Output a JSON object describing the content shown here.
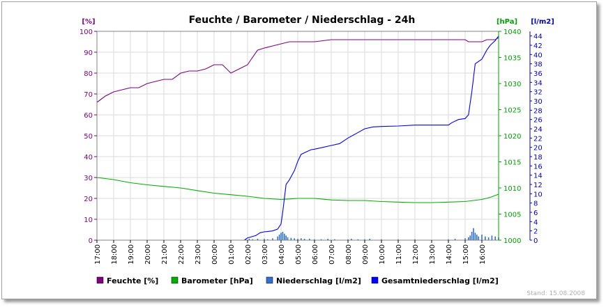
{
  "chart_data": {
    "type": "line",
    "title": "Feuchte / Barometer / Niederschlag - 24h",
    "footer": "Stand: 15.08.2008",
    "x_ticks": [
      "17:00",
      "18:00",
      "19:00",
      "20:00",
      "21:00",
      "22:00",
      "23:00",
      "00:00",
      "01:00",
      "02:00",
      "03:00",
      "04:00",
      "05:00",
      "06:00",
      "07:00",
      "08:00",
      "09:00",
      "10:00",
      "11:00",
      "12:00",
      "13:00",
      "14:00",
      "15:00",
      "16:00"
    ],
    "x_range_hours": [
      0,
      24
    ],
    "axes": {
      "left": {
        "unit": "[%]",
        "range": [
          0,
          100
        ],
        "ticks": [
          0,
          10,
          20,
          30,
          40,
          50,
          60,
          70,
          80,
          90,
          100
        ],
        "color": "#800080"
      },
      "right1": {
        "unit": "[hPa]",
        "range": [
          1000,
          1040
        ],
        "ticks": [
          1000,
          1005,
          1010,
          1015,
          1020,
          1025,
          1030,
          1035,
          1040
        ],
        "color": "#00a000"
      },
      "right2": {
        "unit": "[l/m2]",
        "range": [
          0,
          45
        ],
        "ticks": [
          0,
          2,
          4,
          6,
          8,
          10,
          12,
          14,
          16,
          18,
          20,
          22,
          24,
          26,
          28,
          30,
          32,
          34,
          36,
          38,
          40,
          42,
          44
        ],
        "color": "#0000c0"
      }
    },
    "grid": true,
    "legend_position": "bottom",
    "series": [
      {
        "name": "Feuchte [%]",
        "axis": "left",
        "color": "#800080",
        "points": [
          [
            0,
            66
          ],
          [
            0.5,
            69
          ],
          [
            1,
            71
          ],
          [
            1.5,
            72
          ],
          [
            2,
            73
          ],
          [
            2.5,
            73
          ],
          [
            3,
            75
          ],
          [
            3.5,
            76
          ],
          [
            4,
            77
          ],
          [
            4.5,
            77
          ],
          [
            5,
            80
          ],
          [
            5.5,
            81
          ],
          [
            6,
            81
          ],
          [
            6.5,
            82
          ],
          [
            7,
            84
          ],
          [
            7.5,
            84
          ],
          [
            8,
            80
          ],
          [
            8.5,
            82
          ],
          [
            9,
            84
          ],
          [
            9.25,
            87
          ],
          [
            9.6,
            91
          ],
          [
            10,
            92
          ],
          [
            10.5,
            93
          ],
          [
            11,
            94
          ],
          [
            11.5,
            95
          ],
          [
            12,
            95
          ],
          [
            12.5,
            95
          ],
          [
            13,
            95
          ],
          [
            14,
            96
          ],
          [
            15,
            96
          ],
          [
            16,
            96
          ],
          [
            17,
            96
          ],
          [
            18,
            96
          ],
          [
            19,
            96
          ],
          [
            20,
            96
          ],
          [
            21,
            96
          ],
          [
            22,
            96
          ],
          [
            22.2,
            95
          ],
          [
            23,
            95
          ],
          [
            23.3,
            96
          ],
          [
            23.8,
            96
          ],
          [
            24,
            97
          ]
        ]
      },
      {
        "name": "Barometer [hPa]",
        "axis": "right1",
        "color": "#00b000",
        "points": [
          [
            0,
            1012
          ],
          [
            1,
            1011.6
          ],
          [
            2,
            1011
          ],
          [
            3,
            1010.6
          ],
          [
            4,
            1010.3
          ],
          [
            5,
            1010
          ],
          [
            6,
            1009.5
          ],
          [
            7,
            1009
          ],
          [
            8,
            1008.7
          ],
          [
            9,
            1008.4
          ],
          [
            10,
            1008
          ],
          [
            11,
            1007.8
          ],
          [
            11.5,
            1007.9
          ],
          [
            12,
            1008
          ],
          [
            13,
            1008
          ],
          [
            14,
            1007.7
          ],
          [
            15,
            1007.6
          ],
          [
            16,
            1007.6
          ],
          [
            17,
            1007.4
          ],
          [
            18,
            1007.3
          ],
          [
            19,
            1007.2
          ],
          [
            20,
            1007.2
          ],
          [
            21,
            1007.3
          ],
          [
            22,
            1007.4
          ],
          [
            23,
            1007.8
          ],
          [
            23.5,
            1008.2
          ],
          [
            24,
            1008.8
          ]
        ]
      },
      {
        "name": "Gesamtniederschlag [l/m2]",
        "axis": "right2",
        "color": "#0000ff",
        "points": [
          [
            0,
            0
          ],
          [
            8.8,
            0
          ],
          [
            9,
            0.5
          ],
          [
            9.5,
            1
          ],
          [
            9.75,
            1.6
          ],
          [
            10,
            1.8
          ],
          [
            10.5,
            2
          ],
          [
            10.8,
            2.4
          ],
          [
            11,
            3.5
          ],
          [
            11.1,
            6
          ],
          [
            11.2,
            9
          ],
          [
            11.3,
            12
          ],
          [
            11.5,
            13
          ],
          [
            11.8,
            15
          ],
          [
            12,
            17
          ],
          [
            12.2,
            18.5
          ],
          [
            12.5,
            19
          ],
          [
            12.8,
            19.5
          ],
          [
            13,
            19.6
          ],
          [
            13.5,
            20
          ],
          [
            14,
            20.4
          ],
          [
            14.5,
            20.8
          ],
          [
            15,
            22
          ],
          [
            15.5,
            23
          ],
          [
            16,
            24
          ],
          [
            16.5,
            24.4
          ],
          [
            17,
            24.5
          ],
          [
            18,
            24.6
          ],
          [
            19,
            24.8
          ],
          [
            20,
            24.8
          ],
          [
            21,
            24.8
          ],
          [
            21.2,
            25.3
          ],
          [
            21.6,
            26
          ],
          [
            22,
            26.2
          ],
          [
            22.2,
            27
          ],
          [
            22.4,
            32
          ],
          [
            22.6,
            38
          ],
          [
            23,
            39
          ],
          [
            23.3,
            41
          ],
          [
            23.5,
            42
          ],
          [
            23.8,
            43
          ],
          [
            24,
            44
          ]
        ]
      },
      {
        "name": "Niederschlag [l/m2]",
        "axis": "right2",
        "type": "bar",
        "color": "#3070d0",
        "points": [
          [
            8.9,
            0.2
          ],
          [
            9.1,
            0.3
          ],
          [
            9.3,
            0.2
          ],
          [
            9.6,
            0.3
          ],
          [
            10,
            0.3
          ],
          [
            10.2,
            0.2
          ],
          [
            10.5,
            0.4
          ],
          [
            10.8,
            0.8
          ],
          [
            10.9,
            1.2
          ],
          [
            11,
            1.6
          ],
          [
            11.1,
            1.8
          ],
          [
            11.2,
            1.4
          ],
          [
            11.3,
            1
          ],
          [
            11.4,
            0.6
          ],
          [
            11.6,
            0.5
          ],
          [
            11.8,
            0.4
          ],
          [
            12,
            0.3
          ],
          [
            12.2,
            0.4
          ],
          [
            12.4,
            0.3
          ],
          [
            12.7,
            0.3
          ],
          [
            13,
            0.2
          ],
          [
            13.4,
            0.2
          ],
          [
            13.8,
            0.3
          ],
          [
            14.2,
            0.2
          ],
          [
            15,
            0.2
          ],
          [
            15.2,
            0.3
          ],
          [
            15.6,
            0.2
          ],
          [
            16,
            0.2
          ],
          [
            16.3,
            0.3
          ],
          [
            17,
            0.2
          ],
          [
            18,
            0.2
          ],
          [
            19,
            0.2
          ],
          [
            21,
            0.2
          ],
          [
            21.4,
            0.3
          ],
          [
            22,
            0.4
          ],
          [
            22.2,
            0.6
          ],
          [
            22.3,
            1
          ],
          [
            22.4,
            1.8
          ],
          [
            22.5,
            2.6
          ],
          [
            22.6,
            1.6
          ],
          [
            22.7,
            1.2
          ],
          [
            22.8,
            0.8
          ],
          [
            23,
            1.2
          ],
          [
            23.2,
            0.8
          ],
          [
            23.4,
            0.6
          ],
          [
            23.6,
            1
          ],
          [
            23.8,
            0.8
          ],
          [
            24,
            0.6
          ]
        ]
      }
    ]
  }
}
